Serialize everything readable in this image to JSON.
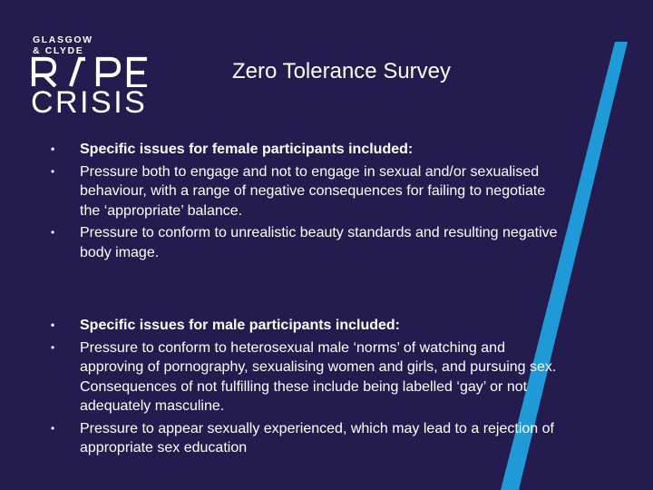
{
  "logo": {
    "line1": "GLASGOW",
    "line2": "& CLYDE",
    "word1": "RAPE",
    "word2": "CRISIS"
  },
  "title": "Zero Tolerance Survey",
  "colors": {
    "background": "#241c4f",
    "accent_stripe": "#1f9ad6",
    "text": "#ffffff"
  },
  "bullet_symbol": "•",
  "sections": [
    {
      "items": [
        {
          "text": "Specific issues for female participants included:",
          "bold": true
        },
        {
          "text": "Pressure both to engage and not to engage in sexual and/or sexualised behaviour, with a range of negative consequences for failing to negotiate the ‘appropriate’ balance.",
          "bold": false
        },
        {
          "text": "Pressure to conform to unrealistic beauty standards and resulting negative body image.",
          "bold": false
        }
      ]
    },
    {
      "items": [
        {
          "text": "Specific issues for male participants included:",
          "bold": true
        },
        {
          "text": "Pressure to conform to heterosexual male ‘norms’ of watching and approving of pornography, sexualising women and girls, and pursuing sex. Consequences of not fulfilling these include being labelled ‘gay’ or not adequately masculine.",
          "bold": false
        },
        {
          "text": "Pressure to appear sexually experienced, which may lead to a rejection of appropriate sex education",
          "bold": false
        }
      ]
    }
  ]
}
